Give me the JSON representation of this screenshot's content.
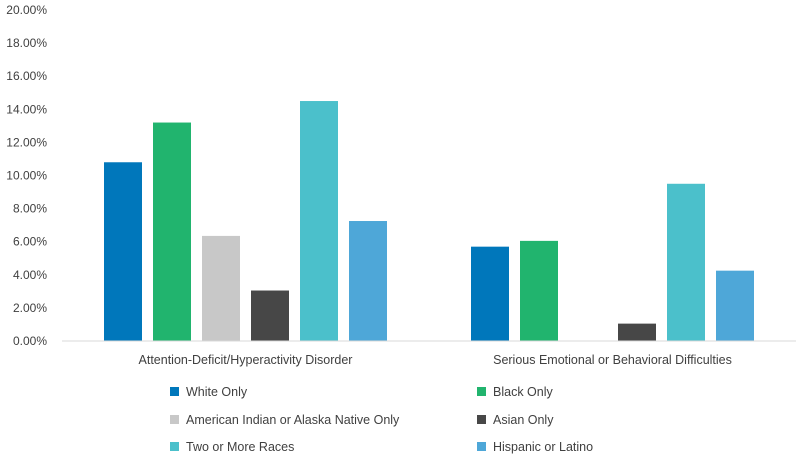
{
  "chart_data": {
    "type": "bar",
    "title": "",
    "xlabel": "",
    "ylabel": "",
    "ylim": [
      0,
      20
    ],
    "y_tick_labels": [
      "0.00%",
      "2.00%",
      "4.00%",
      "6.00%",
      "8.00%",
      "10.00%",
      "12.00%",
      "14.00%",
      "16.00%",
      "18.00%",
      "20.00%"
    ],
    "y_ticks": [
      0,
      2,
      4,
      6,
      8,
      10,
      12,
      14,
      16,
      18,
      20
    ],
    "grid": false,
    "legend_position": "bottom",
    "categories": [
      "Attention-Deficit/Hyperactivity Disorder",
      "Serious Emotional or Behavioral Difficulties"
    ],
    "series": [
      {
        "name": "White Only",
        "color": "#0077bb",
        "values": [
          10.8,
          5.7
        ]
      },
      {
        "name": "Black Only",
        "color": "#21b46e",
        "values": [
          13.2,
          6.05
        ]
      },
      {
        "name": "American Indian or Alaska Native Only",
        "color": "#c8c8c8",
        "values": [
          6.35,
          null
        ]
      },
      {
        "name": "Asian Only",
        "color": "#474747",
        "values": [
          3.05,
          1.05
        ]
      },
      {
        "name": "Two or More Races",
        "color": "#4bc0cb",
        "values": [
          14.5,
          9.5
        ]
      },
      {
        "name": "Hispanic or Latino",
        "color": "#4ea7d8",
        "values": [
          7.25,
          4.25
        ]
      }
    ]
  }
}
